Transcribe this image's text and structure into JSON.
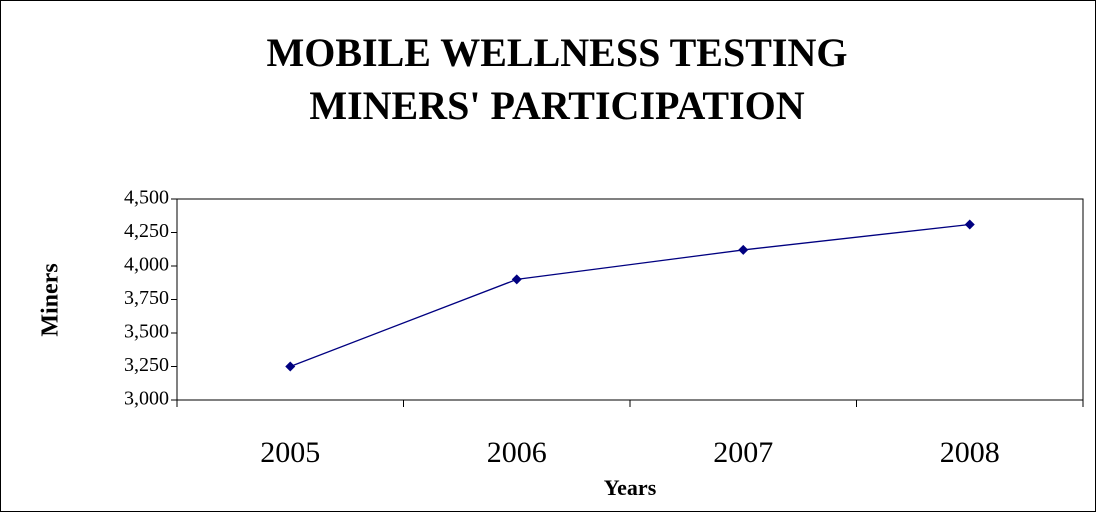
{
  "chart_data": {
    "type": "line",
    "title": [
      "MOBILE WELLNESS TESTING",
      "MINERS' PARTICIPATION"
    ],
    "x_label": "Years",
    "y_label": "Miners",
    "categories": [
      "2005",
      "2006",
      "2007",
      "2008"
    ],
    "series": [
      {
        "name": "Miners",
        "color": "#000080",
        "values": [
          3250,
          3900,
          4120,
          4310
        ]
      }
    ],
    "ylim": [
      3000,
      4500
    ],
    "yticks": [
      {
        "value": 3000,
        "label": "3,000"
      },
      {
        "value": 3250,
        "label": "3,250"
      },
      {
        "value": 3500,
        "label": "3,500"
      },
      {
        "value": 3750,
        "label": "3,750"
      },
      {
        "value": 4000,
        "label": "4,000"
      },
      {
        "value": 4250,
        "label": "4,250"
      },
      {
        "value": 4500,
        "label": "4,500"
      }
    ],
    "grid": false
  }
}
